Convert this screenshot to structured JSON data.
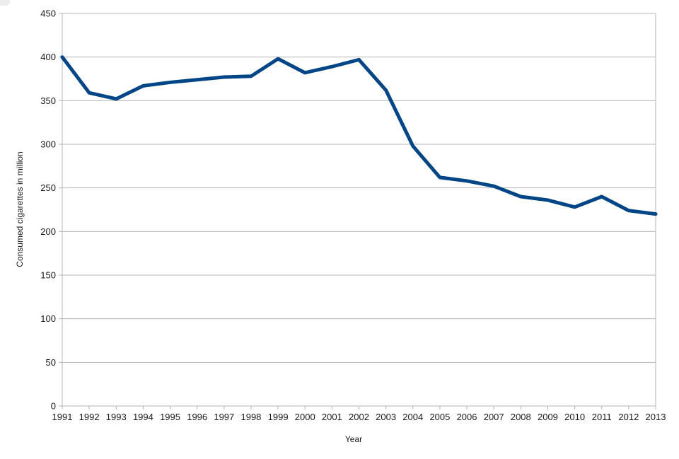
{
  "chart_data": {
    "type": "line",
    "title": "",
    "xlabel": "Year",
    "ylabel": "Consumed cigarettes in million",
    "x": [
      1991,
      1992,
      1993,
      1994,
      1995,
      1996,
      1997,
      1998,
      1999,
      2000,
      2001,
      2002,
      2003,
      2004,
      2005,
      2006,
      2007,
      2008,
      2009,
      2010,
      2011,
      2012,
      2013
    ],
    "series": [
      {
        "name": "Consumed cigarettes in million",
        "color": "#004586",
        "values": [
          400,
          359,
          352,
          367,
          371,
          374,
          377,
          378,
          398,
          382,
          389,
          397,
          362,
          298,
          262,
          258,
          252,
          240,
          236,
          228,
          240,
          224,
          220
        ]
      }
    ],
    "ylim": [
      0,
      450
    ],
    "ytick_step": 50,
    "yticks": [
      0,
      50,
      100,
      150,
      200,
      250,
      300,
      350,
      400,
      450
    ],
    "grid": true,
    "legend": "none",
    "colors": {
      "grid": "#b3b3b3",
      "axis": "#b3b3b3",
      "text": "#1a1a1a"
    },
    "line_width": 5
  }
}
